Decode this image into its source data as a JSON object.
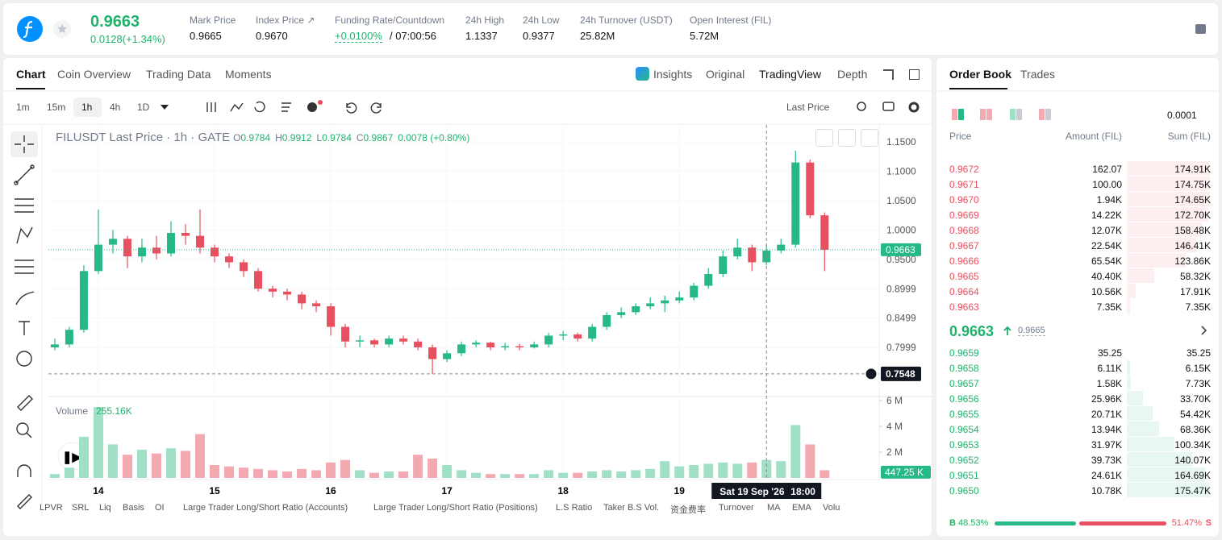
{
  "header": {
    "price": "0.9663",
    "change": "0.0128(+1.34%)",
    "stats": [
      {
        "label": "Mark Price",
        "value": "0.9665"
      },
      {
        "label": "Index Price ↗",
        "value": "0.9670"
      },
      {
        "label": "Funding Rate/Countdown",
        "value": "+0.0100%",
        "extra": "/ 07:00:56"
      },
      {
        "label": "24h High",
        "value": "1.1337"
      },
      {
        "label": "24h Low",
        "value": "0.9377"
      },
      {
        "label": "24h Turnover (USDT)",
        "value": "25.82M"
      },
      {
        "label": "Open Interest (FIL)",
        "value": "5.72M"
      }
    ]
  },
  "tabs": [
    "Chart",
    "Coin Overview",
    "Trading Data",
    "Moments"
  ],
  "views": [
    "Insights",
    "Original",
    "TradingView",
    "Depth"
  ],
  "intervals": [
    "1m",
    "15m",
    "1h",
    "4h",
    "1D"
  ],
  "price_type": "Last Price",
  "indicators": [
    "LPVR",
    "SRL",
    "Liq",
    "Basis",
    "OI",
    "Large Trader Long/Short Ratio (Accounts)",
    "Large Trader Long/Short Ratio (Positions)",
    "L.S Ratio",
    "Taker B.S Vol.",
    "资金费率",
    "Turnover",
    "MA",
    "EMA",
    "Volu"
  ],
  "chart_data": {
    "type": "candlestick",
    "title": "FILUSDT Last Price · 1h · GATE",
    "legend": [
      {
        "key": "O",
        "value": "0.9784"
      },
      {
        "key": "H",
        "value": "0.9912"
      },
      {
        "key": "L",
        "value": "0.9784"
      },
      {
        "key": "C",
        "value": "0.9867"
      }
    ],
    "legend_change": "0.0078 (+0.80%)",
    "up_color": "#26b987",
    "down_color": "#e8505f",
    "up_volume_color": "#9fe0c6",
    "down_volume_color": "#f4a9b1",
    "x": [
      13.625,
      13.75,
      13.875,
      14,
      14.125,
      14.25,
      14.375,
      14.5,
      14.625,
      14.75,
      14.875,
      15,
      15.125,
      15.25,
      15.375,
      15.5,
      15.625,
      15.75,
      15.875,
      16,
      16.125,
      16.25,
      16.375,
      16.5,
      16.625,
      16.75,
      16.875,
      17,
      17.125,
      17.25,
      17.375,
      17.5,
      17.625,
      17.75,
      17.875,
      18,
      18.125,
      18.25,
      18.375,
      18.5,
      18.625,
      18.75,
      18.875,
      19,
      19.125,
      19.25,
      19.375,
      19.5,
      19.625,
      19.75,
      19.875,
      20,
      20.125,
      20.25
    ],
    "open": [
      0.8,
      0.805,
      0.83,
      0.93,
      0.975,
      0.985,
      0.955,
      0.97,
      0.96,
      0.995,
      0.99,
      0.97,
      0.955,
      0.945,
      0.93,
      0.9,
      0.895,
      0.89,
      0.875,
      0.87,
      0.835,
      0.81,
      0.812,
      0.805,
      0.815,
      0.81,
      0.8,
      0.78,
      0.79,
      0.805,
      0.808,
      0.8,
      0.802,
      0.8,
      0.805,
      0.82,
      0.822,
      0.815,
      0.835,
      0.855,
      0.86,
      0.87,
      0.875,
      0.88,
      0.885,
      0.905,
      0.925,
      0.955,
      0.97,
      0.945,
      0.965,
      0.975,
      1.115,
      1.025
    ],
    "high": [
      0.815,
      0.835,
      0.94,
      1.035,
      1.0,
      0.99,
      0.985,
      0.99,
      1.015,
      1.01,
      1.035,
      0.975,
      0.96,
      0.95,
      0.935,
      0.905,
      0.9,
      0.895,
      0.88,
      0.875,
      0.84,
      0.82,
      0.815,
      0.82,
      0.82,
      0.815,
      0.805,
      0.795,
      0.81,
      0.812,
      0.81,
      0.808,
      0.806,
      0.81,
      0.825,
      0.828,
      0.825,
      0.84,
      0.86,
      0.868,
      0.875,
      0.885,
      0.888,
      0.895,
      0.91,
      0.935,
      0.965,
      0.985,
      0.975,
      0.975,
      0.985,
      1.135,
      1.12,
      1.03
    ],
    "low": [
      0.795,
      0.8,
      0.825,
      0.925,
      0.96,
      0.935,
      0.945,
      0.95,
      0.955,
      0.975,
      0.96,
      0.945,
      0.935,
      0.92,
      0.895,
      0.885,
      0.88,
      0.865,
      0.86,
      0.82,
      0.8,
      0.8,
      0.8,
      0.8,
      0.805,
      0.795,
      0.7548,
      0.775,
      0.785,
      0.8,
      0.795,
      0.795,
      0.795,
      0.798,
      0.8,
      0.812,
      0.81,
      0.81,
      0.83,
      0.85,
      0.855,
      0.865,
      0.86,
      0.875,
      0.88,
      0.9,
      0.92,
      0.95,
      0.93,
      0.94,
      0.96,
      0.97,
      1.02,
      0.93
    ],
    "close": [
      0.805,
      0.83,
      0.93,
      0.975,
      0.985,
      0.955,
      0.97,
      0.96,
      0.995,
      0.99,
      0.97,
      0.955,
      0.945,
      0.93,
      0.9,
      0.895,
      0.89,
      0.875,
      0.87,
      0.835,
      0.81,
      0.812,
      0.805,
      0.815,
      0.81,
      0.8,
      0.78,
      0.79,
      0.805,
      0.808,
      0.8,
      0.802,
      0.8,
      0.805,
      0.82,
      0.822,
      0.815,
      0.835,
      0.855,
      0.86,
      0.87,
      0.875,
      0.88,
      0.885,
      0.905,
      0.925,
      0.955,
      0.97,
      0.945,
      0.965,
      0.975,
      1.115,
      1.025,
      0.9663
    ],
    "volume": [
      0.3,
      0.8,
      3.2,
      5.5,
      2.6,
      1.8,
      2.2,
      1.9,
      2.3,
      2.1,
      3.4,
      1.0,
      0.9,
      0.8,
      0.7,
      0.6,
      0.5,
      0.7,
      0.6,
      1.2,
      1.4,
      0.6,
      0.4,
      0.5,
      0.5,
      1.8,
      1.5,
      1.0,
      0.6,
      0.4,
      0.3,
      0.3,
      0.3,
      0.3,
      0.6,
      0.4,
      0.4,
      0.5,
      0.6,
      0.5,
      0.6,
      0.7,
      1.3,
      0.9,
      1.0,
      1.1,
      1.2,
      1.1,
      1.2,
      1.4,
      1.3,
      4.1,
      2.6,
      0.6
    ],
    "xlim": [
      13.57,
      20.72
    ],
    "xticks": [
      14,
      15,
      16,
      17,
      18,
      19
    ],
    "ylim": [
      0.719,
      1.179
    ],
    "yticks": [
      {
        "value": 1.15,
        "label": "1.1500"
      },
      {
        "value": 1.1,
        "label": "1.1000"
      },
      {
        "value": 1.05,
        "label": "1.0500"
      },
      {
        "value": 1.0,
        "label": "1.0000"
      },
      {
        "value": 0.95,
        "label": "0.9500"
      },
      0.8999,
      0.8499,
      0.7999
    ],
    "volume_title": "Volume",
    "volume_value": "255.16K",
    "vlim": [
      0,
      6.25
    ],
    "vticks": [
      {
        "value": 6,
        "label": "6 M"
      },
      {
        "value": 4,
        "label": "4 M"
      },
      {
        "value": 2,
        "label": "2 M"
      }
    ],
    "last_price": 0.9663,
    "last_volume": 0.44725,
    "last_volume_label": "447.25 K",
    "crosshair": {
      "x": 19.75,
      "y": 0.7548,
      "date": "Sat 19 Sep '26",
      "time": "18:00"
    }
  },
  "order_book": {
    "tabs": [
      "Order Book",
      "Trades"
    ],
    "precision": "0.0001",
    "columns": [
      "Price",
      "Amount (FIL)",
      "Sum (FIL)"
    ],
    "asks": [
      {
        "price": "0.9672",
        "amount": "162.07",
        "sum": 174910,
        "sum_label": "174.91K"
      },
      {
        "price": "0.9671",
        "amount": "100.00",
        "sum": 174750,
        "sum_label": "174.75K"
      },
      {
        "price": "0.9670",
        "amount": "1.94K",
        "sum": 174650,
        "sum_label": "174.65K"
      },
      {
        "price": "0.9669",
        "amount": "14.22K",
        "sum": 172700,
        "sum_label": "172.70K"
      },
      {
        "price": "0.9668",
        "amount": "12.07K",
        "sum": 158480,
        "sum_label": "158.48K"
      },
      {
        "price": "0.9667",
        "amount": "22.54K",
        "sum": 146410,
        "sum_label": "146.41K"
      },
      {
        "price": "0.9666",
        "amount": "65.54K",
        "sum": 123860,
        "sum_label": "123.86K"
      },
      {
        "price": "0.9665",
        "amount": "40.40K",
        "sum": 58320,
        "sum_label": "58.32K"
      },
      {
        "price": "0.9664",
        "amount": "10.56K",
        "sum": 17910,
        "sum_label": "17.91K"
      },
      {
        "price": "0.9663",
        "amount": "7.35K",
        "sum": 7350,
        "sum_label": "7.35K"
      }
    ],
    "mid": "0.9663",
    "mark": "0.9665",
    "bids": [
      {
        "price": "0.9659",
        "amount": "35.25",
        "sum": 35.25
      },
      {
        "price": "0.9658",
        "amount": "6.11K",
        "sum": 6150,
        "sum_label": "6.15K"
      },
      {
        "price": "0.9657",
        "amount": "1.58K",
        "sum": 7730,
        "sum_label": "7.73K"
      },
      {
        "price": "0.9656",
        "amount": "25.96K",
        "sum": 33700,
        "sum_label": "33.70K"
      },
      {
        "price": "0.9655",
        "amount": "20.71K",
        "sum": 54420,
        "sum_label": "54.42K"
      },
      {
        "price": "0.9654",
        "amount": "13.94K",
        "sum": 68360,
        "sum_label": "68.36K"
      },
      {
        "price": "0.9653",
        "amount": "31.97K",
        "sum": 100340,
        "sum_label": "100.34K"
      },
      {
        "price": "0.9652",
        "amount": "39.73K",
        "sum": 140070,
        "sum_label": "140.07K"
      },
      {
        "price": "0.9651",
        "amount": "24.61K",
        "sum": 164690,
        "sum_label": "164.69K"
      },
      {
        "price": "0.9650",
        "amount": "10.78K",
        "sum": 175470,
        "sum_label": "175.47K"
      }
    ],
    "buy_key": "B",
    "sell_key": "S",
    "buy_ratio": 48.53,
    "buy_label": "48.53%",
    "sell_ratio": 51.47,
    "sell_label": "51.47%"
  }
}
